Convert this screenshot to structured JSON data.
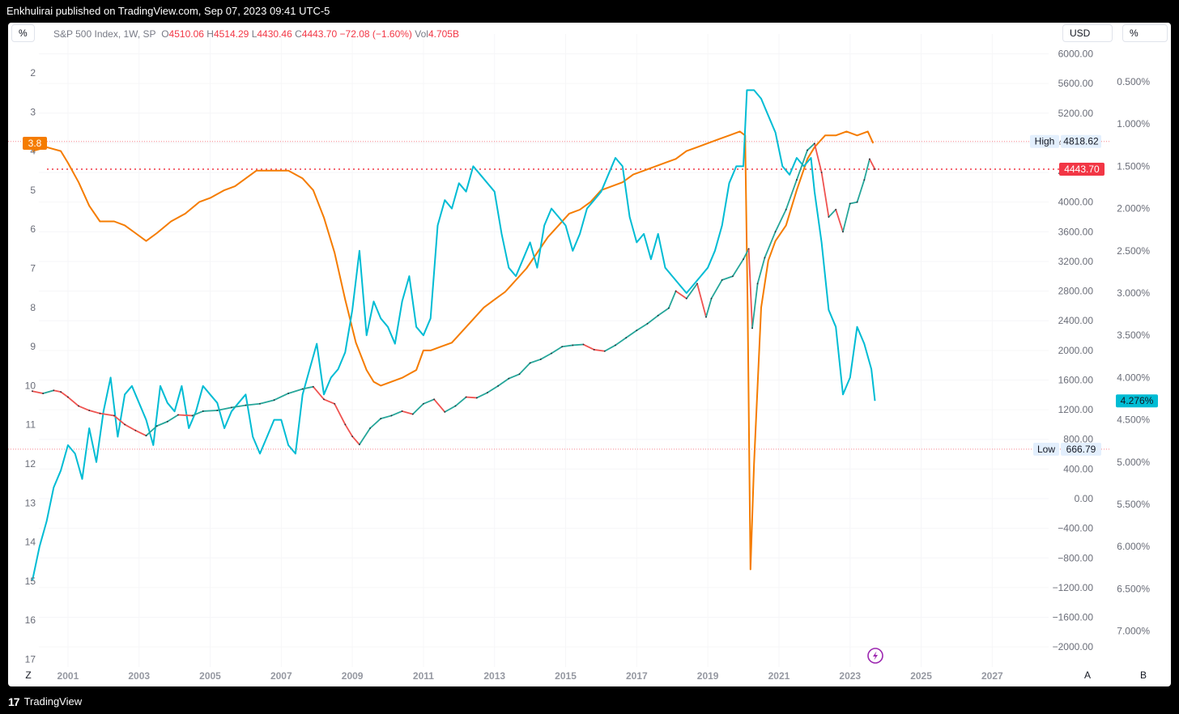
{
  "publish_text": "Enkhulirai published on TradingView.com, Sep 07, 2023 09:41 UTC-5",
  "toolbar": {
    "percent_left": "%",
    "currency": "USD",
    "percent_right": "%"
  },
  "legend": {
    "symbol": "S&P 500 Index, 1W, SP",
    "o_label": "O",
    "o_value": "4510.06",
    "h_label": "H",
    "h_value": "4514.29",
    "l_label": "L",
    "l_value": "4430.46",
    "c_label": "C",
    "c_value": "4443.70",
    "change": "−72.08 (−1.60%)",
    "vol_label": "Vol",
    "vol_value": "4.705B"
  },
  "footer": {
    "brand": "TradingView",
    "logo_glyph": "17"
  },
  "colors": {
    "orange": "#f57c00",
    "cyan": "#00bcd4",
    "up": "#26a69a",
    "down": "#ef5350",
    "price_red": "#f23645",
    "bg": "#ffffff"
  },
  "icons": [
    "tradingview-logo-icon",
    "lightning-icon"
  ],
  "chart_data": {
    "type": "line",
    "x_axis": {
      "ticks": [
        "2001",
        "2003",
        "2005",
        "2007",
        "2009",
        "2011",
        "2013",
        "2015",
        "2017",
        "2019",
        "2021",
        "2023",
        "2025",
        "2027"
      ],
      "range": [
        2000.0,
        2028.7
      ]
    },
    "axis_left": {
      "ticks": [
        "2",
        "3",
        "4",
        "5",
        "6",
        "7",
        "8",
        "9",
        "10",
        "11",
        "12",
        "13",
        "14",
        "15",
        "16",
        "17"
      ],
      "range": [
        2,
        17
      ],
      "inverted": true,
      "corner": "Z"
    },
    "axis_price": {
      "ticks": [
        "6000.00",
        "5600.00",
        "5200.00",
        "4800.00",
        "4400.00",
        "4000.00",
        "3600.00",
        "3200.00",
        "2800.00",
        "2400.00",
        "2000.00",
        "1600.00",
        "1200.00",
        "800.00",
        "400.00",
        "0.00",
        "−400.00",
        "−800.00",
        "−1200.00",
        "−1600.00",
        "−2000.00"
      ],
      "range": [
        -2000,
        6000
      ],
      "corner": "A"
    },
    "axis_rate": {
      "ticks": [
        "0.500%",
        "1.000%",
        "1.500%",
        "2.000%",
        "2.500%",
        "3.000%",
        "3.500%",
        "4.000%",
        "4.500%",
        "5.000%",
        "5.500%",
        "6.000%",
        "6.500%",
        "7.000%"
      ],
      "range": [
        0.5,
        7.0
      ],
      "inverted": true,
      "corner": "B"
    },
    "labels": {
      "high": {
        "text": "High",
        "value": "4818.62",
        "price": 4818.62
      },
      "low": {
        "text": "Low",
        "value": "666.79",
        "price": 666.79
      },
      "last_price": {
        "value": "4443.70",
        "price": 4443.7
      },
      "orange_last": {
        "value": "3.8",
        "level": 3.8
      },
      "cyan_last": {
        "value": "4.276%",
        "rate": 4.276
      }
    },
    "series": [
      {
        "axis": "left",
        "style": "line",
        "color": "#f57c00",
        "x": [
          2000.0,
          2000.4,
          2000.8,
          2001.0,
          2001.3,
          2001.6,
          2001.9,
          2002.3,
          2002.6,
          2002.9,
          2003.2,
          2003.5,
          2003.9,
          2004.3,
          2004.7,
          2005.0,
          2005.4,
          2005.7,
          2006.0,
          2006.3,
          2006.6,
          2006.9,
          2007.2,
          2007.6,
          2007.9,
          2008.2,
          2008.5,
          2008.8,
          2009.1,
          2009.4,
          2009.6,
          2009.8,
          2010.1,
          2010.4,
          2010.8,
          2011.0,
          2011.2,
          2011.5,
          2011.8,
          2012.1,
          2012.4,
          2012.7,
          2013.0,
          2013.3,
          2013.6,
          2013.9,
          2014.2,
          2014.5,
          2014.8,
          2015.1,
          2015.4,
          2015.7,
          2016.0,
          2016.3,
          2016.6,
          2016.9,
          2017.2,
          2017.5,
          2017.8,
          2018.1,
          2018.4,
          2018.7,
          2019.0,
          2019.3,
          2019.6,
          2019.9,
          2020.05,
          2020.12,
          2020.2,
          2020.3,
          2020.5,
          2020.7,
          2020.9,
          2021.2,
          2021.5,
          2021.8,
          2022.0,
          2022.3,
          2022.6,
          2022.9,
          2023.2,
          2023.5,
          2023.65
        ],
        "y": [
          4.0,
          3.9,
          4.0,
          4.3,
          4.8,
          5.4,
          5.8,
          5.8,
          5.9,
          6.1,
          6.3,
          6.1,
          5.8,
          5.6,
          5.3,
          5.2,
          5.0,
          4.9,
          4.7,
          4.5,
          4.5,
          4.5,
          4.5,
          4.7,
          5.0,
          5.7,
          6.6,
          7.8,
          8.9,
          9.6,
          9.9,
          10.0,
          9.9,
          9.8,
          9.6,
          9.1,
          9.1,
          9.0,
          8.9,
          8.6,
          8.3,
          8.0,
          7.8,
          7.6,
          7.3,
          7.0,
          6.6,
          6.2,
          5.9,
          5.6,
          5.5,
          5.3,
          5.0,
          4.9,
          4.8,
          4.6,
          4.5,
          4.4,
          4.3,
          4.2,
          4.0,
          3.9,
          3.8,
          3.7,
          3.6,
          3.5,
          3.6,
          8.0,
          14.7,
          12.0,
          8.0,
          6.8,
          6.3,
          5.9,
          5.0,
          4.2,
          3.9,
          3.6,
          3.6,
          3.5,
          3.6,
          3.5,
          3.8
        ]
      },
      {
        "axis": "rate",
        "style": "line",
        "color": "#00bcd4",
        "x": [
          2000.0,
          2000.2,
          2000.4,
          2000.6,
          2000.8,
          2001.0,
          2001.2,
          2001.4,
          2001.6,
          2001.8,
          2002.0,
          2002.2,
          2002.4,
          2002.6,
          2002.8,
          2003.0,
          2003.2,
          2003.4,
          2003.6,
          2003.8,
          2004.0,
          2004.2,
          2004.4,
          2004.6,
          2004.8,
          2005.0,
          2005.2,
          2005.4,
          2005.6,
          2005.8,
          2006.0,
          2006.2,
          2006.4,
          2006.6,
          2006.8,
          2007.0,
          2007.2,
          2007.4,
          2007.6,
          2007.8,
          2008.0,
          2008.2,
          2008.4,
          2008.6,
          2008.8,
          2009.0,
          2009.2,
          2009.4,
          2009.6,
          2009.8,
          2010.0,
          2010.2,
          2010.4,
          2010.6,
          2010.8,
          2011.0,
          2011.2,
          2011.4,
          2011.6,
          2011.8,
          2012.0,
          2012.2,
          2012.4,
          2012.6,
          2012.8,
          2013.0,
          2013.2,
          2013.4,
          2013.6,
          2013.8,
          2014.0,
          2014.2,
          2014.4,
          2014.6,
          2014.8,
          2015.0,
          2015.2,
          2015.4,
          2015.6,
          2015.8,
          2016.0,
          2016.2,
          2016.4,
          2016.6,
          2016.8,
          2017.0,
          2017.2,
          2017.4,
          2017.6,
          2017.8,
          2018.0,
          2018.2,
          2018.4,
          2018.6,
          2018.8,
          2019.0,
          2019.2,
          2019.4,
          2019.6,
          2019.8,
          2020.0,
          2020.1,
          2020.3,
          2020.5,
          2020.7,
          2020.9,
          2021.1,
          2021.3,
          2021.5,
          2021.7,
          2021.9,
          2022.0,
          2022.2,
          2022.4,
          2022.6,
          2022.8,
          2023.0,
          2023.2,
          2023.4,
          2023.6,
          2023.7
        ],
        "y": [
          6.4,
          6.0,
          5.7,
          5.3,
          5.1,
          4.8,
          4.9,
          5.2,
          4.6,
          5.0,
          4.4,
          4.0,
          4.7,
          4.2,
          4.1,
          4.3,
          4.5,
          4.8,
          4.1,
          4.3,
          4.4,
          4.1,
          4.6,
          4.4,
          4.1,
          4.2,
          4.3,
          4.6,
          4.4,
          4.3,
          4.2,
          4.7,
          4.9,
          4.7,
          4.5,
          4.5,
          4.8,
          4.9,
          4.2,
          3.9,
          3.6,
          4.2,
          4.0,
          3.9,
          3.7,
          3.2,
          2.5,
          3.5,
          3.1,
          3.3,
          3.4,
          3.6,
          3.1,
          2.8,
          3.4,
          3.5,
          3.3,
          2.2,
          1.9,
          2.0,
          1.7,
          1.8,
          1.5,
          1.6,
          1.7,
          1.8,
          2.3,
          2.7,
          2.8,
          2.6,
          2.4,
          2.7,
          2.2,
          2.0,
          2.1,
          2.2,
          2.5,
          2.3,
          2.0,
          1.9,
          1.8,
          1.6,
          1.4,
          1.5,
          2.1,
          2.4,
          2.3,
          2.6,
          2.3,
          2.7,
          2.8,
          2.9,
          3.0,
          2.9,
          2.8,
          2.7,
          2.5,
          2.2,
          1.7,
          1.5,
          1.5,
          0.6,
          0.6,
          0.7,
          0.9,
          1.1,
          1.5,
          1.6,
          1.4,
          1.5,
          1.4,
          1.8,
          2.4,
          3.2,
          3.4,
          4.2,
          4.0,
          3.4,
          3.6,
          3.9,
          4.276
        ]
      },
      {
        "axis": "price",
        "style": "candles-line",
        "color": "#26a69a",
        "down_color": "#ef5350",
        "x": [
          2000.0,
          2000.3,
          2000.6,
          2000.8,
          2001.0,
          2001.3,
          2001.6,
          2001.9,
          2002.3,
          2002.6,
          2002.9,
          2003.2,
          2003.5,
          2003.8,
          2004.1,
          2004.5,
          2004.8,
          2005.2,
          2005.6,
          2006.0,
          2006.4,
          2006.8,
          2007.2,
          2007.6,
          2007.9,
          2008.2,
          2008.5,
          2008.8,
          2009.0,
          2009.2,
          2009.5,
          2009.8,
          2010.1,
          2010.4,
          2010.7,
          2011.0,
          2011.3,
          2011.6,
          2011.9,
          2012.2,
          2012.5,
          2012.8,
          2013.1,
          2013.4,
          2013.7,
          2014.0,
          2014.3,
          2014.6,
          2014.9,
          2015.2,
          2015.5,
          2015.8,
          2016.1,
          2016.4,
          2016.7,
          2017.0,
          2017.3,
          2017.6,
          2017.9,
          2018.1,
          2018.4,
          2018.7,
          2018.95,
          2019.1,
          2019.4,
          2019.7,
          2020.0,
          2020.15,
          2020.25,
          2020.4,
          2020.6,
          2020.9,
          2021.2,
          2021.5,
          2021.8,
          2022.0,
          2022.2,
          2022.4,
          2022.6,
          2022.8,
          2023.0,
          2023.2,
          2023.4,
          2023.55,
          2023.7
        ],
        "y": [
          1450,
          1420,
          1460,
          1440,
          1370,
          1250,
          1190,
          1150,
          1120,
          1000,
          920,
          850,
          980,
          1040,
          1130,
          1120,
          1180,
          1190,
          1230,
          1260,
          1280,
          1330,
          1420,
          1480,
          1510,
          1340,
          1280,
          1000,
          840,
          730,
          950,
          1080,
          1120,
          1180,
          1140,
          1280,
          1340,
          1170,
          1250,
          1370,
          1360,
          1430,
          1520,
          1620,
          1680,
          1830,
          1880,
          1960,
          2050,
          2070,
          2080,
          2010,
          1990,
          2070,
          2170,
          2270,
          2360,
          2470,
          2570,
          2800,
          2700,
          2900,
          2450,
          2700,
          2950,
          3000,
          3230,
          3370,
          2300,
          2900,
          3250,
          3600,
          3900,
          4300,
          4700,
          4790,
          4400,
          3800,
          3900,
          3600,
          3980,
          4000,
          4300,
          4580,
          4443.7
        ]
      }
    ]
  }
}
